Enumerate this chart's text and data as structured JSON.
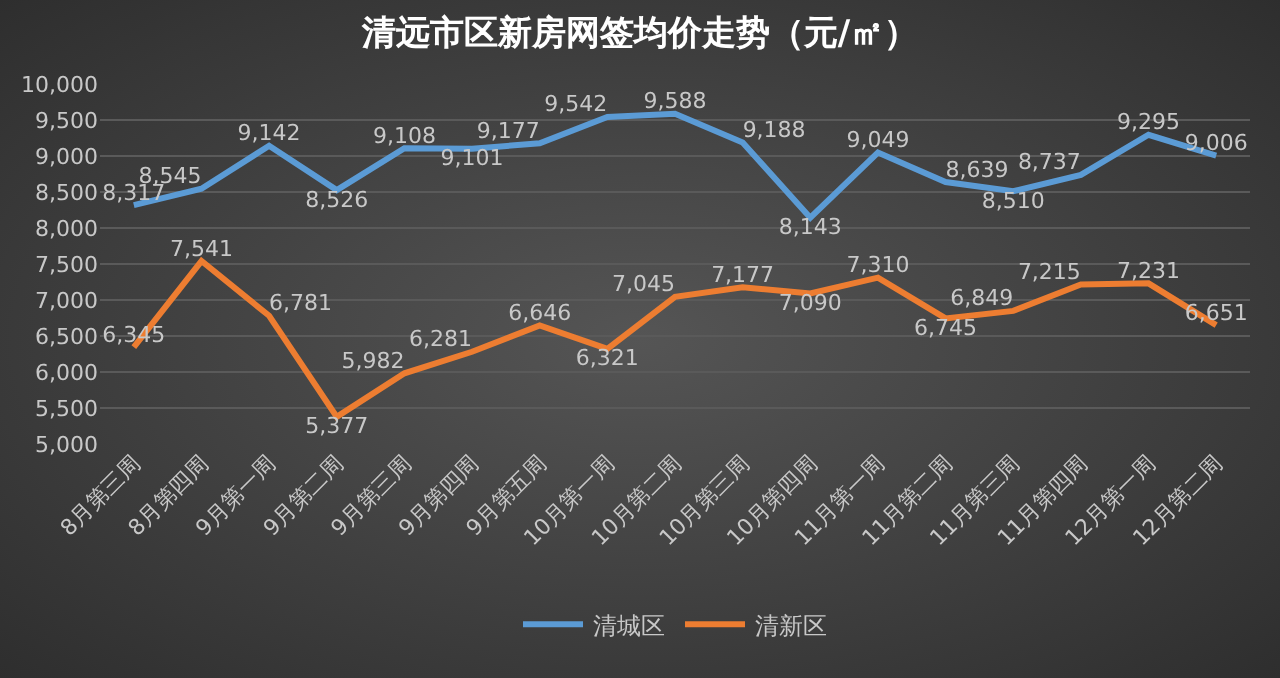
{
  "chart_data": {
    "type": "line",
    "title": "清远市区新房网签均价走势（元/㎡）",
    "categories": [
      "8月第三周",
      "8月第四周",
      "9月第一周",
      "9月第二周",
      "9月第三周",
      "9月第四周",
      "9月第五周",
      "10月第一周",
      "10月第二周",
      "10月第三周",
      "10月第四周",
      "11月第一周",
      "11月第二周",
      "11月第三周",
      "11月第四周",
      "12月第一周",
      "12月第二周"
    ],
    "series": [
      {
        "name": "清城区",
        "color": "#5b9bd5",
        "values": [
          8317,
          8545,
          9142,
          8526,
          9108,
          9101,
          9177,
          9542,
          9588,
          9188,
          8143,
          9049,
          8639,
          8510,
          8737,
          9295,
          9006
        ],
        "value_labels": [
          "8,317",
          "8,545",
          "9,142",
          "8,526",
          "9,108",
          "9,101",
          "9,177",
          "9,542",
          "9,588",
          "9,188",
          "8,143",
          "9,049",
          "8,639",
          "8,510",
          "8,737",
          "9,295",
          "9,006"
        ]
      },
      {
        "name": "清新区",
        "color": "#ed7d31",
        "values": [
          6345,
          7541,
          6781,
          5377,
          5982,
          6281,
          6646,
          6321,
          7045,
          7177,
          7090,
          7310,
          6745,
          6849,
          7215,
          7231,
          6651
        ],
        "value_labels": [
          "6,345",
          "7,541",
          "6,781",
          "5,377",
          "5,982",
          "6,281",
          "6,646",
          "6,321",
          "7,045",
          "7,177",
          "7,090",
          "7,310",
          "6,745",
          "6,849",
          "7,215",
          "7,231",
          "6,651"
        ]
      }
    ],
    "ylim": [
      5000,
      10000
    ],
    "yticks": [
      {
        "value": 5000,
        "label": "5,000"
      },
      {
        "value": 5500,
        "label": "5,500"
      },
      {
        "value": 6000,
        "label": "6,000"
      },
      {
        "value": 6500,
        "label": "6,500"
      },
      {
        "value": 7000,
        "label": "7,000"
      },
      {
        "value": 7500,
        "label": "7,500"
      },
      {
        "value": 8000,
        "label": "8,000"
      },
      {
        "value": 8500,
        "label": "8,500"
      },
      {
        "value": 9000,
        "label": "9,000"
      },
      {
        "value": 9500,
        "label": "9,500"
      },
      {
        "value": 10000,
        "label": "10,000"
      }
    ],
    "grid": "y",
    "legend": "bottom",
    "marker": "none",
    "line_style": "solid"
  }
}
